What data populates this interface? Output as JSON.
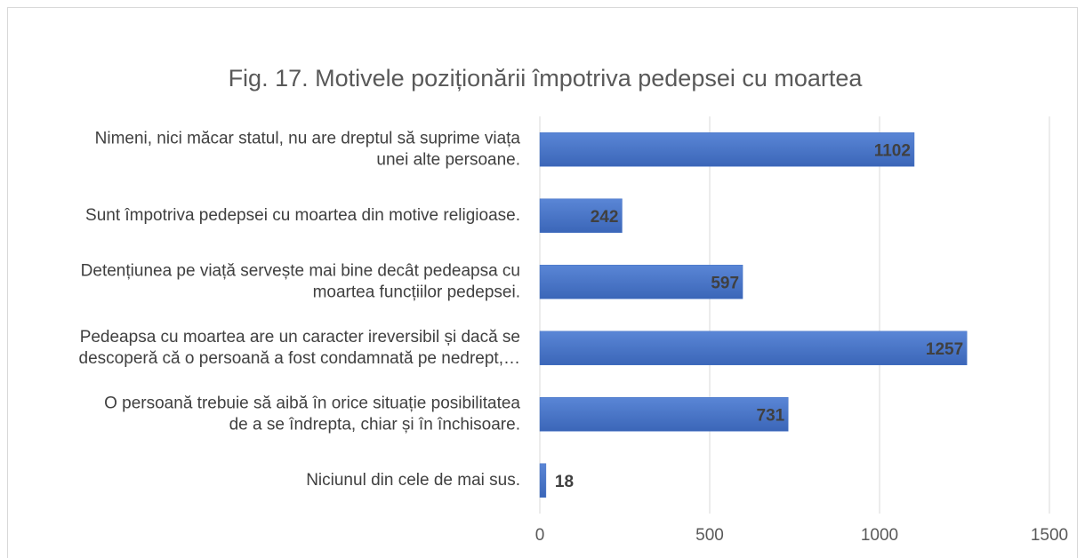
{
  "chart_data": {
    "type": "barh",
    "title": "Fig. 17. Motivele poziționării împotriva pedepsei cu moartea",
    "categories": [
      [
        "Nimeni, nici măcar statul, nu are dreptul să suprime viața",
        "unei alte persoane."
      ],
      [
        "Sunt împotriva pedepsei cu moartea din motive religioase."
      ],
      [
        "Detențiunea pe viață servește mai bine decât pedeapsa cu",
        "moartea funcțiilor pedepsei."
      ],
      [
        "Pedeapsa cu moartea are un caracter ireversibil și dacă se",
        "descoperă că o persoană a fost condamnată pe nedrept,…"
      ],
      [
        "O persoană trebuie să aibă în orice situație posibilitatea",
        "de a se îndrepta, chiar și în închisoare."
      ],
      [
        "Niciunul din cele de mai sus."
      ]
    ],
    "values": [
      1102,
      242,
      597,
      1257,
      731,
      18
    ],
    "color": "#4472c4",
    "xlim": [
      0,
      1500
    ],
    "xticks": [
      0,
      500,
      1000,
      1500
    ],
    "grid": true
  }
}
